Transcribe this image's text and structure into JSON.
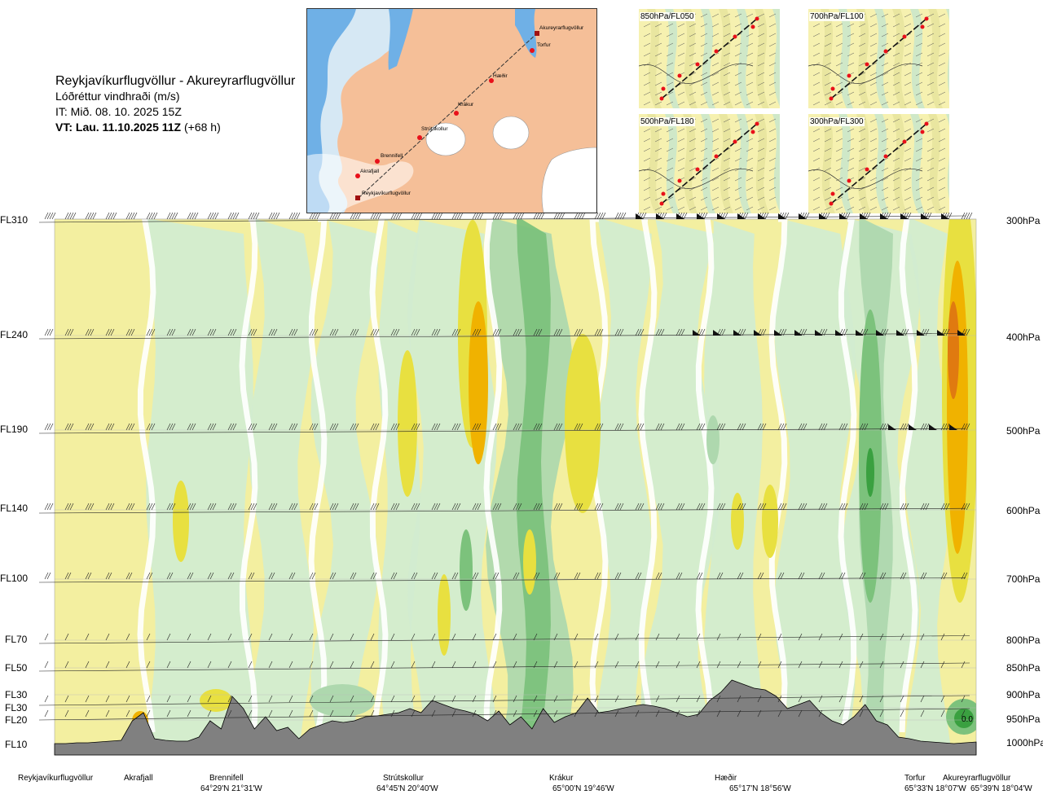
{
  "header": {
    "route": "Reykjavíkurflugvöllur - Akureyrarflugvöllur",
    "parameter": "Lóðréttur vindhraði (m/s)",
    "issue_time": "IT: Mið. 08. 10. 2025 15Z",
    "valid_label": "VT: Lau. 11.10.2025 11Z",
    "valid_offset": "(+68 h)"
  },
  "route_map": {
    "labels": [
      "Akureyrarflugvöllur",
      "Torfur",
      "Hæðir",
      "Krákur",
      "Strútskollur",
      "Brennifell",
      "Akrafjall",
      "Reykjavíkurflugvöllur"
    ],
    "colors": {
      "sea": "#6fb0e6",
      "land": "#f2b48a",
      "glacier": "#ffffff",
      "route": "#333333",
      "point": "#e8101a"
    }
  },
  "thumbnails": [
    {
      "label": "850hPa/FL050"
    },
    {
      "label": "700hPa/FL100"
    },
    {
      "label": "500hPa/FL180"
    },
    {
      "label": "300hPa/FL300"
    }
  ],
  "levels": [
    {
      "fl": "FL310",
      "hpa": "300hPa"
    },
    {
      "fl": "FL240",
      "hpa": "400hPa"
    },
    {
      "fl": "FL190",
      "hpa": "500hPa"
    },
    {
      "fl": "FL140",
      "hpa": "600hPa"
    },
    {
      "fl": "FL100",
      "hpa": "700hPa"
    },
    {
      "fl": "FL70",
      "hpa": "800hPa"
    },
    {
      "fl": "FL50",
      "hpa": "850hPa"
    },
    {
      "fl": "FL30",
      "hpa": "900hPa"
    },
    {
      "fl": "FL30",
      "hpa": ""
    },
    {
      "fl": "FL20",
      "hpa": "950hPa"
    },
    {
      "fl": "FL10",
      "hpa": "1000hPa"
    }
  ],
  "stations": [
    {
      "name": "Reykjavíkurflugvöllur",
      "coord": ""
    },
    {
      "name": "Akrafjall",
      "coord": ""
    },
    {
      "name": "Brennifell",
      "coord": "64°29'N 21°31'W"
    },
    {
      "name": "Strútskollur",
      "coord": "64°45'N 20°40'W"
    },
    {
      "name": "Krákur",
      "coord": "65°00'N 19°46'W"
    },
    {
      "name": "Hæðir",
      "coord": "65°17'N 18°56'W"
    },
    {
      "name": "Torfur",
      "coord": "65°33'N 18°07'W"
    },
    {
      "name": "Akureyrarflugvöllur",
      "coord": "65°39'N 18°04'W"
    }
  ],
  "annotation": "0.0",
  "chart_data": {
    "type": "heatmap",
    "title": "Reykjavíkurflugvöllur - Akureyrarflugvöllur",
    "subtitle": "Lóðréttur vindhraði (m/s)",
    "y_levels_hpa": [
      300,
      400,
      500,
      600,
      700,
      800,
      850,
      900,
      950,
      1000
    ],
    "y_levels_fl": [
      "FL310",
      "FL240",
      "FL190",
      "FL140",
      "FL100",
      "FL70",
      "FL50",
      "FL30",
      "FL30",
      "FL20",
      "FL10"
    ],
    "x_waypoints": [
      "Reykjavíkurflugvöllur",
      "Akrafjall",
      "Brennifell",
      "Strútskollur",
      "Krákur",
      "Hæðir",
      "Torfur",
      "Akureyrarflugvöllur"
    ],
    "colors": {
      "strong_down": "#e07a10",
      "down_3": "#f0b200",
      "down_2": "#e8e040",
      "down_1": "#f3efa0",
      "weak": "#ffffff",
      "up_1": "#d2ecd0",
      "up_2": "#aed8ae",
      "up_3": "#7cc27c",
      "up_4": "#3aa040",
      "terrain": "#808080"
    },
    "terrain_profile": [
      2,
      2,
      3,
      3,
      4,
      5,
      6,
      30,
      40,
      8,
      6,
      5,
      5,
      10,
      30,
      20,
      60,
      45,
      20,
      35,
      18,
      22,
      8,
      20,
      25,
      30,
      28,
      30,
      35,
      36,
      38,
      40,
      45,
      40,
      55,
      50,
      45,
      42,
      38,
      30,
      42,
      25,
      35,
      20,
      45,
      28,
      35,
      40,
      58,
      40,
      42,
      45,
      48,
      50,
      48,
      45,
      40,
      35,
      38,
      55,
      65,
      80,
      75,
      70,
      68,
      60,
      45,
      50,
      55,
      40,
      30,
      25,
      35,
      50,
      30,
      25,
      10,
      8,
      5,
      4,
      3,
      2,
      3,
      4
    ],
    "wind_barb_levels": [
      "FL310",
      "FL240",
      "FL190",
      "FL140",
      "FL100",
      "FL70",
      "FL50",
      "FL30",
      "FL20"
    ],
    "legend": "none"
  }
}
